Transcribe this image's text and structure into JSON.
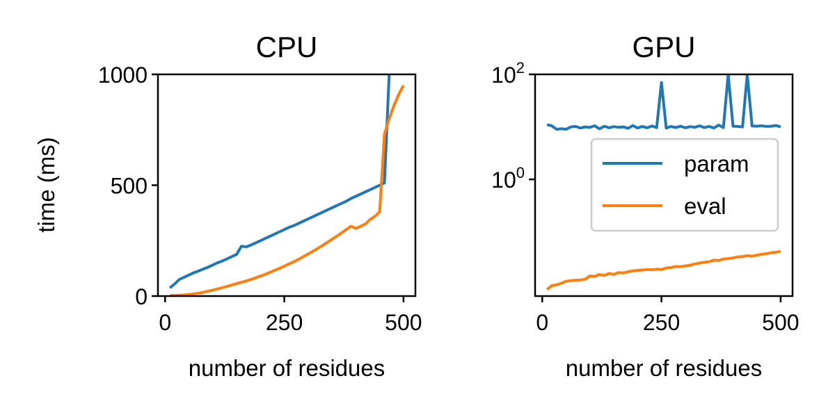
{
  "chart_data": [
    {
      "type": "line",
      "title": "CPU",
      "xlabel": "number of residues",
      "ylabel": "time (ms)",
      "xlim": [
        -15,
        525
      ],
      "ylim": [
        0,
        1000
      ],
      "xticks": [
        0,
        250,
        500
      ],
      "xtick_labels": [
        "0",
        "250",
        "500"
      ],
      "yticks": [
        0,
        500,
        1000
      ],
      "ytick_labels": [
        "0",
        "500",
        "1000"
      ],
      "grid": false,
      "series": [
        {
          "name": "param",
          "color": "#1f77b4",
          "x": [
            10,
            20,
            30,
            40,
            50,
            60,
            70,
            80,
            90,
            100,
            110,
            120,
            130,
            140,
            150,
            160,
            170,
            180,
            190,
            200,
            210,
            220,
            230,
            240,
            250,
            260,
            270,
            280,
            290,
            300,
            310,
            320,
            330,
            340,
            350,
            360,
            370,
            380,
            390,
            400,
            410,
            420,
            430,
            440,
            450,
            460,
            470
          ],
          "y": [
            37,
            55,
            75,
            85,
            95,
            105,
            113,
            122,
            130,
            140,
            150,
            158,
            168,
            178,
            188,
            225,
            222,
            230,
            240,
            250,
            260,
            270,
            280,
            290,
            300,
            310,
            318,
            328,
            338,
            348,
            358,
            368,
            378,
            388,
            398,
            408,
            418,
            428,
            440,
            450,
            460,
            470,
            480,
            490,
            500,
            510,
            1000
          ]
        },
        {
          "name": "eval",
          "color": "#ff7f0e",
          "x": [
            10,
            20,
            30,
            40,
            50,
            60,
            70,
            80,
            90,
            100,
            110,
            120,
            130,
            140,
            150,
            160,
            170,
            180,
            190,
            200,
            210,
            220,
            230,
            240,
            250,
            260,
            270,
            280,
            290,
            300,
            310,
            320,
            330,
            340,
            350,
            360,
            370,
            380,
            390,
            400,
            410,
            420,
            430,
            440,
            450,
            460,
            470,
            480,
            490,
            500
          ],
          "y": [
            2,
            3,
            4,
            5,
            7,
            10,
            13,
            17,
            22,
            27,
            32,
            38,
            44,
            50,
            56,
            62,
            68,
            75,
            82,
            90,
            98,
            107,
            116,
            125,
            135,
            145,
            155,
            166,
            178,
            190,
            202,
            215,
            228,
            242,
            256,
            270,
            285,
            300,
            315,
            305,
            315,
            325,
            345,
            360,
            380,
            730,
            800,
            860,
            910,
            950
          ]
        }
      ]
    },
    {
      "type": "line",
      "title": "GPU",
      "xlabel": "number of residues",
      "ylabel": "",
      "xlim": [
        -15,
        525
      ],
      "ylim": [
        0.006,
        100
      ],
      "yscale": "log",
      "xticks": [
        0,
        250,
        500
      ],
      "xtick_labels": [
        "0",
        "250",
        "500"
      ],
      "yticks": [
        1,
        100
      ],
      "ytick_labels": [
        {
          "base": "10",
          "exp": "0"
        },
        {
          "base": "10",
          "exp": "2"
        }
      ],
      "grid": false,
      "legend": {
        "position": "center-right",
        "entries": [
          {
            "label": "param",
            "color": "#1f77b4"
          },
          {
            "label": "eval",
            "color": "#ff7f0e"
          }
        ]
      },
      "series": [
        {
          "name": "param",
          "color": "#1f77b4",
          "x": [
            10,
            20,
            30,
            40,
            50,
            60,
            70,
            80,
            90,
            100,
            110,
            120,
            130,
            140,
            150,
            160,
            170,
            180,
            190,
            200,
            210,
            220,
            230,
            240,
            250,
            260,
            270,
            280,
            290,
            300,
            310,
            320,
            330,
            340,
            350,
            360,
            370,
            380,
            390,
            400,
            410,
            420,
            430,
            440,
            450,
            460,
            470,
            480,
            490,
            500
          ],
          "y": [
            11,
            10.5,
            9,
            9.2,
            9,
            10,
            10.2,
            9.5,
            10,
            9.8,
            10.5,
            9.2,
            10.3,
            9.6,
            10.1,
            9.8,
            10,
            9.4,
            10.6,
            9.5,
            10.2,
            9.6,
            10.4,
            9.7,
            70,
            9.5,
            10.2,
            9.7,
            10.3,
            9.6,
            10.1,
            9.8,
            10.5,
            9.7,
            10.2,
            9.5,
            10.8,
            9.7,
            100,
            10.3,
            10.2,
            10,
            100,
            10.4,
            10.3,
            10.5,
            10.2,
            10.3,
            10.6,
            10
          ]
        },
        {
          "name": "eval",
          "color": "#ff7f0e",
          "x": [
            10,
            20,
            30,
            40,
            50,
            60,
            70,
            80,
            90,
            100,
            110,
            120,
            130,
            140,
            150,
            160,
            170,
            180,
            190,
            200,
            210,
            220,
            230,
            240,
            250,
            260,
            270,
            280,
            290,
            300,
            310,
            320,
            330,
            340,
            350,
            360,
            370,
            380,
            390,
            400,
            410,
            420,
            430,
            440,
            450,
            460,
            470,
            480,
            490,
            500
          ],
          "y": [
            0.008,
            0.0095,
            0.0098,
            0.0105,
            0.0115,
            0.0118,
            0.012,
            0.0122,
            0.0125,
            0.0145,
            0.0142,
            0.0155,
            0.0148,
            0.0162,
            0.0155,
            0.0168,
            0.0165,
            0.0175,
            0.018,
            0.0185,
            0.0188,
            0.0192,
            0.019,
            0.0195,
            0.0192,
            0.0205,
            0.021,
            0.022,
            0.0218,
            0.0225,
            0.0232,
            0.0245,
            0.0255,
            0.0265,
            0.027,
            0.029,
            0.0285,
            0.0305,
            0.031,
            0.032,
            0.0335,
            0.034,
            0.0352,
            0.0345,
            0.036,
            0.0375,
            0.0385,
            0.04,
            0.0412,
            0.0425
          ]
        }
      ]
    }
  ]
}
